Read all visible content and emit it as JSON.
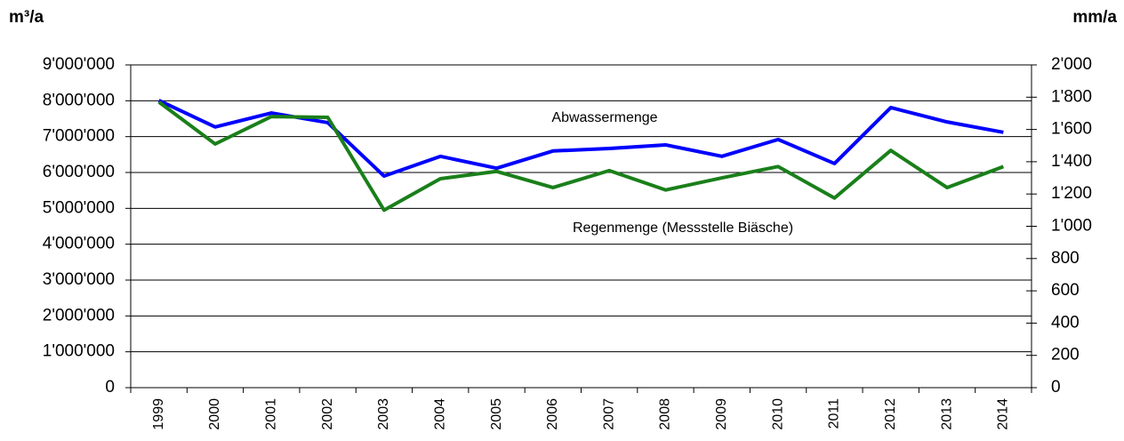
{
  "chart_data": {
    "type": "line",
    "y_label": "m³/a",
    "y2_label": "mm/a",
    "categories": [
      "1999",
      "2000",
      "2001",
      "2002",
      "2003",
      "2004",
      "2005",
      "2006",
      "2007",
      "2008",
      "2009",
      "2010",
      "2011",
      "2012",
      "2013",
      "2014"
    ],
    "series": [
      {
        "name": "Abwassermenge",
        "color": "#0000ff",
        "axis": "y",
        "values": [
          8010000,
          7270000,
          7660000,
          7390000,
          5900000,
          6450000,
          6120000,
          6600000,
          6670000,
          6770000,
          6450000,
          6920000,
          6250000,
          7810000,
          7410000,
          7120000
        ]
      },
      {
        "name": "Regenmenge (Messstelle Biäsche)",
        "color": "#1a7f1a",
        "axis": "y2",
        "values": [
          1770,
          1510,
          1680,
          1675,
          1100,
          1295,
          1340,
          1240,
          1345,
          1225,
          1300,
          1370,
          1175,
          1470,
          1240,
          1370
        ]
      }
    ],
    "ylim": [
      0,
      9000000
    ],
    "yticks": [
      0,
      {
        "value": 1000000,
        "label": "1'000'000"
      },
      {
        "value": 2000000,
        "label": "2'000'000"
      },
      {
        "value": 3000000,
        "label": "3'000'000"
      },
      {
        "value": 4000000,
        "label": "4'000'000"
      },
      {
        "value": 5000000,
        "label": "5'000'000"
      },
      {
        "value": 6000000,
        "label": "6'000'000"
      },
      {
        "value": 7000000,
        "label": "7'000'000"
      },
      {
        "value": 8000000,
        "label": "8'000'000"
      },
      {
        "value": 9000000,
        "label": "9'000'000"
      }
    ],
    "y2lim": [
      0,
      2000
    ],
    "y2ticks": [
      0,
      200,
      400,
      600,
      800,
      {
        "value": 1000,
        "label": "1'000"
      },
      {
        "value": 1200,
        "label": "1'200"
      },
      {
        "value": 1400,
        "label": "1'400"
      },
      {
        "value": 1600,
        "label": "1'600"
      },
      {
        "value": 1800,
        "label": "1'800"
      },
      {
        "value": 2000,
        "label": "2'000"
      }
    ],
    "grid": true
  }
}
